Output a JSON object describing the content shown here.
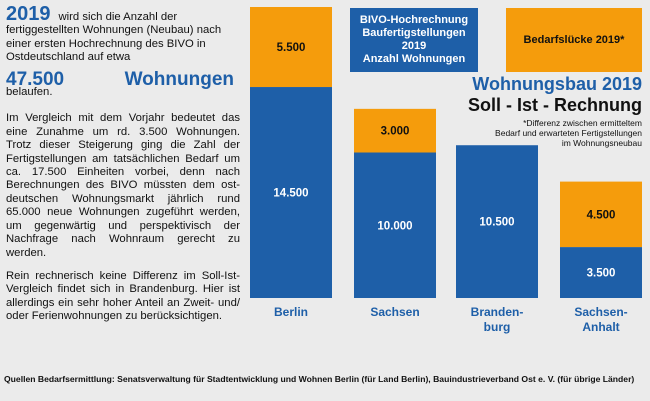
{
  "left_text": {
    "year": "2019",
    "intro": "wird sich die Anzahl der fertiggestellten Wohnungen (Neubau) nach einer ersten Hochrechnung des BIVO in Ostdeutschland auf etwa",
    "big_value": "47.500",
    "big_word": "Wohnungen",
    "belaufen": "belaufen.",
    "paragraph1": "Im Vergleich mit dem Vorjahr bedeutet das eine Zunahme um rd. 3.500 Wohnungen. Trotz dieser Steigerung ging die Zahl der Fertigstellungen am tatsächlichen Bedarf um ca. 17.500 Einheiten vorbei, denn nach Berechnungen des BIVO müssten dem ost-deutschen Wohnungsmarkt jährlich rund 65.000 neue Wohnungen zugeführt werden, um gegenwärtig und perspektivisch der Nachfrage nach Wohnraum gerecht zu werden.",
    "paragraph2": "Rein rechnerisch keine Differenz im Soll-Ist-Vergleich findet sich in Brandenburg. Hier ist allerdings ein sehr hoher Anteil an Zweit- und/ oder Ferienwohnungen zu berücksichtigen."
  },
  "legend": {
    "bivo_lines": [
      "BIVO-Hochrechnung",
      "Baufertigstellungen",
      "2019",
      "Anzahl Wohnungen"
    ],
    "bedarf": "Bedarfslücke 2019*"
  },
  "chart_title": "Wohnungsbau 2019",
  "chart_subtitle": "Soll - Ist - Rechnung",
  "footnote_lines": [
    "*Differenz zwischen ermitteltem",
    "Bedarf und erwarteten Fertigstellungen",
    "im Wohnungsneubau"
  ],
  "sources": "Quellen Bedarfsermittlung: Senatsverwaltung für Stadtentwicklung und Wohnen Berlin (für Land Berlin), Bauindustrieverband Ost e. V. (für übrige Länder)",
  "colors": {
    "blue": "#1e5fa8",
    "orange": "#f59c0c",
    "background": "#ebebeb"
  },
  "chart_data": {
    "type": "bar",
    "stacked": true,
    "categories": [
      "Berlin",
      "Sachsen",
      "Brandenburg",
      "Sachsen-Anhalt"
    ],
    "category_labels": [
      [
        "Berlin"
      ],
      [
        "Sachsen"
      ],
      [
        "Branden-",
        "burg"
      ],
      [
        "Sachsen-",
        "Anhalt"
      ]
    ],
    "series": [
      {
        "name": "BIVO-Hochrechnung Baufertigstellungen 2019 Anzahl Wohnungen",
        "values": [
          14500,
          10000,
          10500,
          3500
        ],
        "labels": [
          "14.500",
          "10.000",
          "10.500",
          "3.500"
        ],
        "color": "#1e5fa8"
      },
      {
        "name": "Bedarfslücke 2019*",
        "values": [
          5500,
          3000,
          0,
          4500
        ],
        "labels": [
          "5.500",
          "3.000",
          "",
          "4.500"
        ],
        "color": "#f59c0c"
      }
    ],
    "ylim": [
      0,
      20000
    ],
    "grid": false,
    "legend_position": "top-right"
  }
}
